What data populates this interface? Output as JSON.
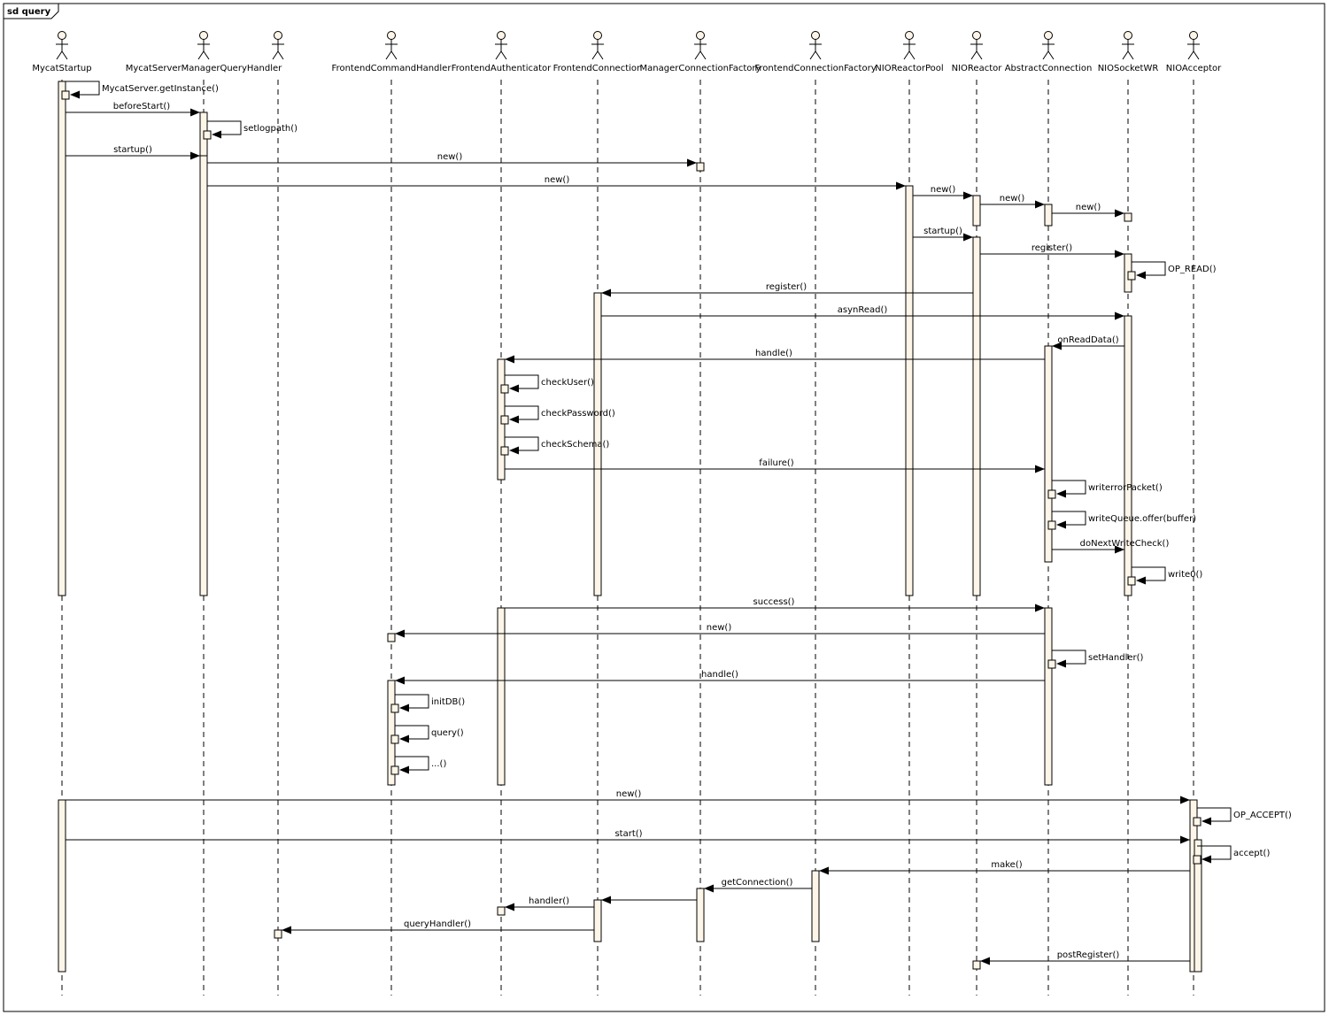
{
  "frame": {
    "title": "sd query"
  },
  "participants": [
    {
      "id": "p0",
      "name": "MycatStartup"
    },
    {
      "id": "p1",
      "name": "MycatServerManagerQueryHandler"
    },
    {
      "id": "p2",
      "name": ""
    },
    {
      "id": "p3",
      "name": "FrontendCommandHandler"
    },
    {
      "id": "p4",
      "name": "FrontendAuthenticator"
    },
    {
      "id": "p5",
      "name": "FrontendConnection"
    },
    {
      "id": "p6",
      "name": "ManagerConnectionFactory"
    },
    {
      "id": "p7",
      "name": "FrontendConnectionFactory"
    },
    {
      "id": "p8",
      "name": "NIOReactorPool"
    },
    {
      "id": "p9",
      "name": "NIOReactor"
    },
    {
      "id": "p10",
      "name": "AbstractConnection"
    },
    {
      "id": "p11",
      "name": "NIOSocketWR"
    },
    {
      "id": "p12",
      "name": "NIOAcceptor"
    }
  ],
  "messages": [
    {
      "label": "MycatServer.getInstance()"
    },
    {
      "label": "beforeStart()"
    },
    {
      "label": "setlogpath()"
    },
    {
      "label": "startup()"
    },
    {
      "label": "new()"
    },
    {
      "label": "new()"
    },
    {
      "label": "new()"
    },
    {
      "label": "new()"
    },
    {
      "label": "new()"
    },
    {
      "label": "startup()"
    },
    {
      "label": "register()"
    },
    {
      "label": "OP_READ()"
    },
    {
      "label": "register()"
    },
    {
      "label": "asynRead()"
    },
    {
      "label": "onReadData()"
    },
    {
      "label": "handle()"
    },
    {
      "label": "checkUser()"
    },
    {
      "label": "checkPassword()"
    },
    {
      "label": "checkSchema()"
    },
    {
      "label": "failure()"
    },
    {
      "label": "writerrorPacket()"
    },
    {
      "label": "writeQueue.offer(buffer)"
    },
    {
      "label": "doNextWriteCheck()"
    },
    {
      "label": "write0()"
    },
    {
      "label": "success()"
    },
    {
      "label": "new()"
    },
    {
      "label": "setHandler()"
    },
    {
      "label": "handle()"
    },
    {
      "label": "initDB()"
    },
    {
      "label": "query()"
    },
    {
      "label": "...()"
    },
    {
      "label": "new()"
    },
    {
      "label": "OP_ACCEPT()"
    },
    {
      "label": "start()"
    },
    {
      "label": "accept()"
    },
    {
      "label": "make()"
    },
    {
      "label": "getConnection()"
    },
    {
      "label": "handler()"
    },
    {
      "label": "queryHandler()"
    },
    {
      "label": "postRegister()"
    }
  ]
}
